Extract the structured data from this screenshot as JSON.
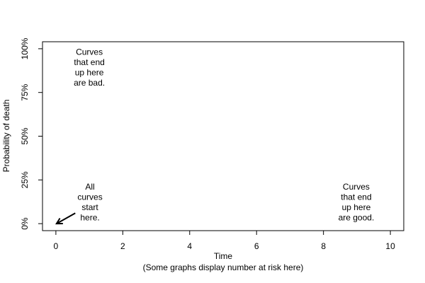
{
  "chart_data": {
    "type": "line",
    "series": [],
    "xlabel": "Time",
    "xlabel_sub": "(Some graphs display number at risk here)",
    "ylabel": "Probability of death",
    "xlim": [
      -0.4,
      10.4
    ],
    "ylim": [
      -0.04,
      1.04
    ],
    "x_ticks": [
      0,
      2,
      4,
      6,
      8,
      10
    ],
    "x_tick_labels": [
      "0",
      "2",
      "4",
      "6",
      "8",
      "10"
    ],
    "y_ticks": [
      0,
      0.25,
      0.5,
      0.75,
      1.0
    ],
    "y_tick_labels": [
      "0%",
      "25%",
      "50%",
      "75%",
      "100%"
    ],
    "grid": false,
    "annotations": [
      {
        "id": "bad",
        "x": 1.0,
        "y": 0.89,
        "lines": [
          "Curves",
          "that end",
          "up here",
          "are bad."
        ]
      },
      {
        "id": "start",
        "x": 1.02,
        "y": 0.12,
        "lines": [
          "All",
          "curves",
          "start",
          "here."
        ]
      },
      {
        "id": "good",
        "x": 8.98,
        "y": 0.12,
        "lines": [
          "Curves",
          "that end",
          "up here",
          "are good."
        ]
      }
    ],
    "arrow": {
      "from": [
        0.58,
        0.06
      ],
      "to": [
        0.02,
        0.0
      ]
    }
  }
}
